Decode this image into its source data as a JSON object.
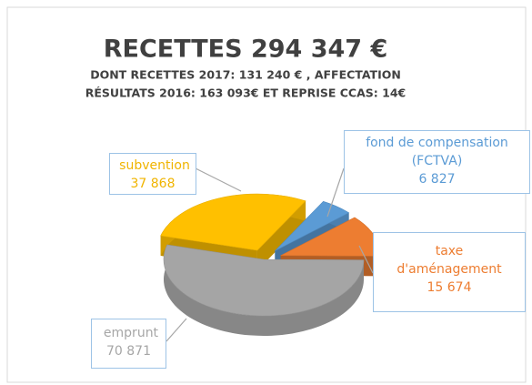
{
  "chart_data": {
    "type": "pie",
    "title": "RECETTES 294 347 €",
    "subtitle": [
      "DONT RECETTES 2017: 131 240 € , AFFECTATION",
      "RÉSULTATS 2016: 163 093€ ET REPRISE CCAS: 14€"
    ],
    "categories": [
      "subvention",
      "fond de compensation (FCTVA)",
      "taxe d'aménagement",
      "emprunt"
    ],
    "values": [
      37868,
      6827,
      15674,
      70871
    ],
    "value_labels": [
      "37 868",
      "6 827",
      "15 674",
      "70 871"
    ],
    "colors": [
      "#ffc000",
      "#5b9bd5",
      "#ed7d31",
      "#a5a5a5"
    ]
  }
}
